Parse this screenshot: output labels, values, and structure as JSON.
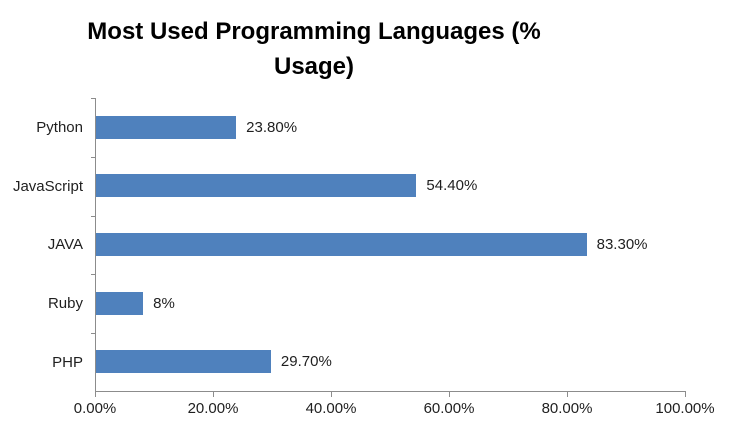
{
  "title_lines": [
    "Most Used Programming Languages (%",
    "Usage)"
  ],
  "colors": {
    "bar": "#4F81BD",
    "axis": "#8C8C8C",
    "text": "#1F1F1F",
    "background": "#FFFFFF"
  },
  "chart_data": {
    "type": "bar",
    "orientation": "horizontal",
    "title": "Most Used Programming Languages (% Usage)",
    "categories": [
      "Python",
      "JavaScript",
      "JAVA",
      "Ruby",
      "PHP"
    ],
    "values": [
      23.8,
      54.4,
      83.3,
      8,
      29.7
    ],
    "value_labels": [
      "23.80%",
      "54.40%",
      "83.30%",
      "8%",
      "29.70%"
    ],
    "xlabel": "",
    "ylabel": "",
    "xlim": [
      0,
      100
    ],
    "x_ticks": [
      "0.00%",
      "20.00%",
      "40.00%",
      "60.00%",
      "80.00%",
      "100.00%"
    ],
    "grid": false,
    "legend": false
  }
}
